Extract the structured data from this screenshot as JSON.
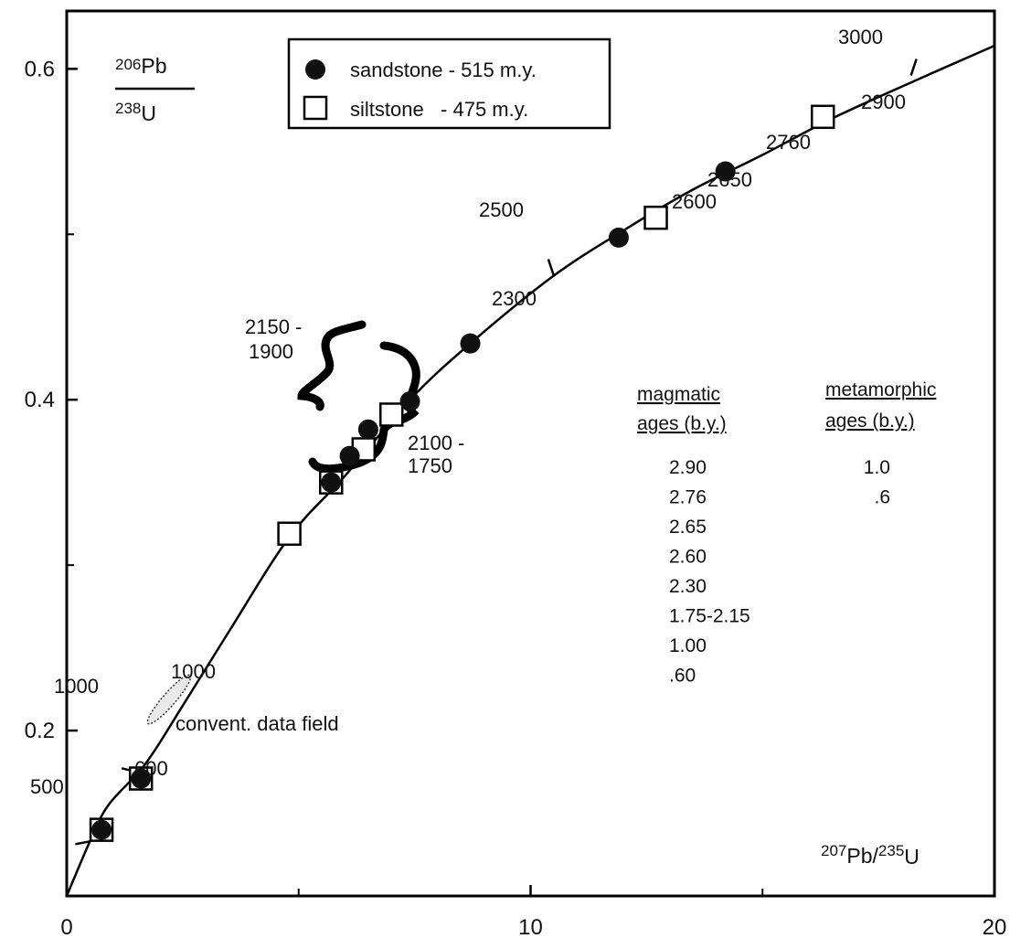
{
  "chart_data": {
    "type": "scatter",
    "xlabel": {
      "base1": "207",
      "el1": "Pb/",
      "base2": "235",
      "el2": "U"
    },
    "ylabel": {
      "num_sup": "206",
      "num_el": "Pb",
      "den_sup": "238",
      "den_el": "U"
    },
    "xlim": [
      0,
      20
    ],
    "ylim": [
      0.1,
      0.635
    ],
    "xticks": [
      0,
      10,
      20
    ],
    "xtick_labels": [
      "0",
      "10",
      "20"
    ],
    "yticks": [
      0.2,
      0.4,
      0.6
    ],
    "ytick_labels": [
      "0.2",
      "0.4",
      "0.6"
    ],
    "grid": false,
    "legend_position": "top-left",
    "legend": [
      {
        "marker": "filled-circle",
        "label": "sandstone - 515 m.y."
      },
      {
        "marker": "open-square",
        "label": "siltstone   - 475 m.y."
      }
    ],
    "concordia": {
      "curve": [
        [
          0,
          0.1
        ],
        [
          0.5,
          0.133
        ],
        [
          0.9,
          0.155
        ],
        [
          1.7,
          0.18
        ],
        [
          2.5,
          0.215
        ],
        [
          3.5,
          0.26
        ],
        [
          4.8,
          0.317
        ],
        [
          6.0,
          0.354
        ],
        [
          7.4,
          0.4
        ],
        [
          8.7,
          0.434
        ],
        [
          10.5,
          0.475
        ],
        [
          12.1,
          0.504
        ],
        [
          13.5,
          0.527
        ],
        [
          15.0,
          0.548
        ],
        [
          16.5,
          0.57
        ],
        [
          18.3,
          0.593
        ],
        [
          20.0,
          0.614
        ]
      ],
      "age_ticks": [
        {
          "x": 0.5,
          "y": 0.133,
          "label": "500"
        },
        {
          "x": 1.5,
          "y": 0.175,
          "label": "1000"
        },
        {
          "x": 10.5,
          "y": 0.475,
          "label": "2500"
        },
        {
          "x": 18.2,
          "y": 0.596,
          "label": "3000"
        }
      ]
    },
    "sandstone": [
      {
        "x": 0.75,
        "y": 0.14
      },
      {
        "x": 1.6,
        "y": 0.171
      },
      {
        "x": 5.7,
        "y": 0.35
      },
      {
        "x": 6.1,
        "y": 0.366
      },
      {
        "x": 6.5,
        "y": 0.382
      },
      {
        "x": 7.4,
        "y": 0.399
      },
      {
        "x": 8.7,
        "y": 0.434
      },
      {
        "x": 11.9,
        "y": 0.498
      },
      {
        "x": 14.2,
        "y": 0.538
      }
    ],
    "siltstone": [
      {
        "x": 0.75,
        "y": 0.14
      },
      {
        "x": 1.6,
        "y": 0.171
      },
      {
        "x": 4.8,
        "y": 0.319
      },
      {
        "x": 5.7,
        "y": 0.35
      },
      {
        "x": 6.4,
        "y": 0.37
      },
      {
        "x": 7.0,
        "y": 0.391
      },
      {
        "x": 12.7,
        "y": 0.51
      },
      {
        "x": 16.3,
        "y": 0.571
      }
    ],
    "point_labels": [
      "600",
      "1000",
      "2300",
      "2600",
      "2650",
      "2760",
      "2900"
    ],
    "bracket_labels": [
      {
        "line1": "2150 -",
        "line2": "1900"
      },
      {
        "line1": "2100 -",
        "line2": "1750"
      }
    ],
    "field_label": "convent. data field",
    "table": {
      "col1_head": [
        "magmatic",
        "ages (b.y.)"
      ],
      "col1_values": [
        "2.90",
        "2.76",
        "2.65",
        "2.60",
        "2.30",
        "1.75-2.15",
        "1.00",
        ".60"
      ],
      "col2_head": [
        "metamorphic",
        "ages (b.y.)"
      ],
      "col2_values": [
        "1.0",
        ".6"
      ]
    }
  }
}
